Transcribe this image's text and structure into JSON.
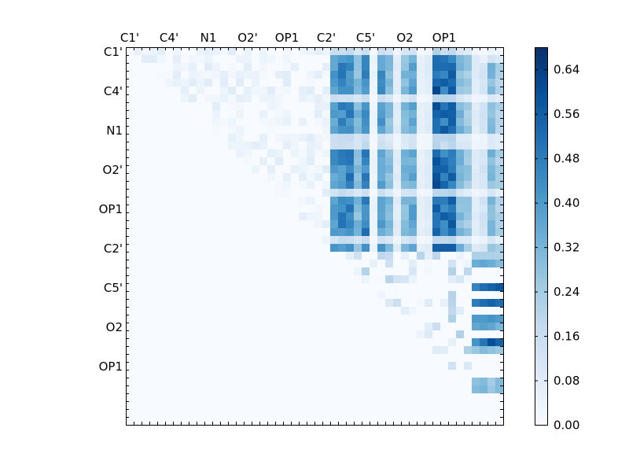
{
  "chart_data": {
    "type": "heatmap",
    "title": "",
    "xlabel": "",
    "ylabel": "",
    "grid": false,
    "colormap": "Blues",
    "matrix_size": 48,
    "x_tick_labels": [
      "C1'",
      "C4'",
      "N1",
      "O2'",
      "OP1",
      "C2'",
      "C5'",
      "O2",
      "OP1"
    ],
    "y_tick_labels": [
      "C1'",
      "C4'",
      "N1",
      "O2'",
      "OP1",
      "C2'",
      "C5'",
      "O2",
      "OP1"
    ],
    "label_every": 5,
    "colorbar": {
      "range": [
        0.0,
        0.68
      ],
      "ticks": [
        "0.00",
        "0.08",
        "0.16",
        "0.24",
        "0.32",
        "0.40",
        "0.48",
        "0.56",
        "0.64"
      ],
      "tick_values": [
        0.0,
        0.08,
        0.16,
        0.24,
        0.32,
        0.4,
        0.48,
        0.56,
        0.64
      ]
    },
    "column_levels": [
      0.4,
      0.44,
      0.46,
      0.3,
      0.46,
      0.04,
      0.4,
      0.3,
      0.08,
      0.3,
      0.36,
      0.06,
      0.08,
      0.55,
      0.5,
      0.52,
      0.3,
      0.25,
      0.08,
      0.12,
      0.3,
      0.22,
      0.04
    ],
    "lower_block_rows": [
      {
        "row": 26,
        "cols": [
          44,
          45,
          46,
          47
        ],
        "values": [
          0.22,
          0.22,
          0.22,
          0.22
        ]
      },
      {
        "row": 27,
        "cols": [
          44,
          45,
          46,
          47
        ],
        "values": [
          0.34,
          0.36,
          0.34,
          0.3
        ]
      },
      {
        "row": 30,
        "cols": [
          44,
          45,
          46,
          47
        ],
        "values": [
          0.46,
          0.52,
          0.55,
          0.58
        ]
      },
      {
        "row": 32,
        "cols": [
          44,
          45,
          46,
          47
        ],
        "values": [
          0.48,
          0.52,
          0.55,
          0.52
        ]
      },
      {
        "row": 34,
        "cols": [
          44,
          45,
          46,
          47
        ],
        "values": [
          0.4,
          0.4,
          0.42,
          0.4
        ]
      },
      {
        "row": 35,
        "cols": [
          44,
          45,
          46,
          47
        ],
        "values": [
          0.36,
          0.38,
          0.36,
          0.32
        ]
      },
      {
        "row": 37,
        "cols": [
          44,
          45,
          46,
          47
        ],
        "values": [
          0.42,
          0.5,
          0.6,
          0.55
        ]
      },
      {
        "row": 38,
        "cols": [
          44,
          45,
          46,
          47
        ],
        "values": [
          0.26,
          0.3,
          0.28,
          0.26
        ]
      },
      {
        "row": 42,
        "cols": [
          44,
          45,
          46,
          47
        ],
        "values": [
          0.28,
          0.3,
          0.24,
          0.3
        ]
      },
      {
        "row": 43,
        "cols": [
          44,
          45,
          46,
          47
        ],
        "values": [
          0.3,
          0.32,
          0.26,
          0.3
        ]
      }
    ]
  }
}
